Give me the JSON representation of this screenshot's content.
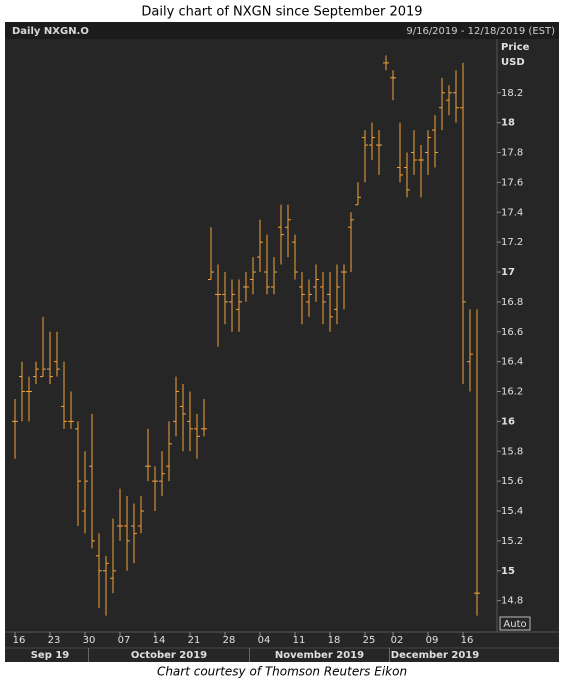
{
  "chart_data": {
    "type": "ohlc",
    "title": "Daily chart of NXGN since September 2019",
    "instrument": "Daily NXGN.O",
    "date_range": "9/16/2019 - 12/18/2019 (EST)",
    "y_axis_label": "Price",
    "y_axis_unit": "USD",
    "scale_button": "Auto",
    "footer": "Chart courtesy of Thomson Reuters Eikon",
    "color": "#f2a23a",
    "x": [
      "2019-09-16",
      "2019-09-17",
      "2019-09-18",
      "2019-09-19",
      "2019-09-20",
      "2019-09-23",
      "2019-09-24",
      "2019-09-25",
      "2019-09-26",
      "2019-09-27",
      "2019-09-30",
      "2019-10-01",
      "2019-10-02",
      "2019-10-03",
      "2019-10-04",
      "2019-10-07",
      "2019-10-08",
      "2019-10-09",
      "2019-10-10",
      "2019-10-11",
      "2019-10-14",
      "2019-10-15",
      "2019-10-16",
      "2019-10-17",
      "2019-10-18",
      "2019-10-21",
      "2019-10-22",
      "2019-10-23",
      "2019-10-24",
      "2019-10-25",
      "2019-10-28",
      "2019-10-29",
      "2019-10-30",
      "2019-10-31",
      "2019-11-01",
      "2019-11-04",
      "2019-11-05",
      "2019-11-06",
      "2019-11-07",
      "2019-11-08",
      "2019-11-11",
      "2019-11-12",
      "2019-11-13",
      "2019-11-14",
      "2019-11-15",
      "2019-11-18",
      "2019-11-19",
      "2019-11-20",
      "2019-11-21",
      "2019-11-22",
      "2019-11-25",
      "2019-11-26",
      "2019-11-27",
      "2019-11-29",
      "2019-12-02",
      "2019-12-03",
      "2019-12-04",
      "2019-12-05",
      "2019-12-06",
      "2019-12-09",
      "2019-12-10",
      "2019-12-11",
      "2019-12-12",
      "2019-12-13",
      "2019-12-16",
      "2019-12-17",
      "2019-12-18"
    ],
    "open": [
      16.0,
      16.3,
      16.2,
      16.3,
      16.3,
      16.35,
      16.4,
      16.1,
      16.0,
      15.95,
      15.4,
      15.7,
      15.1,
      15.0,
      14.95,
      15.3,
      15.3,
      15.3,
      15.3,
      15.7,
      15.6,
      15.6,
      15.7,
      16.0,
      16.1,
      16.0,
      15.95,
      15.95,
      16.95,
      16.85,
      16.85,
      16.8,
      16.75,
      16.9,
      16.95,
      17.1,
      17.0,
      16.9,
      17.3,
      17.3,
      17.2,
      16.9,
      16.8,
      16.9,
      16.9,
      16.85,
      16.75,
      17.0,
      17.3,
      17.45,
      17.9,
      17.85,
      17.85,
      18.4,
      18.3,
      17.7,
      17.7,
      17.8,
      17.75,
      17.8,
      17.95,
      18.1,
      18.15,
      18.2,
      18.1,
      16.4,
      14.85
    ],
    "high": [
      16.15,
      16.4,
      16.3,
      16.4,
      16.7,
      16.6,
      16.6,
      16.4,
      16.2,
      16.0,
      15.8,
      16.05,
      15.25,
      15.1,
      15.35,
      15.55,
      15.5,
      15.45,
      15.5,
      15.95,
      15.7,
      15.8,
      16.0,
      16.3,
      16.25,
      16.2,
      16.05,
      16.15,
      17.3,
      17.05,
      17.0,
      16.95,
      16.95,
      17.0,
      17.1,
      17.35,
      17.25,
      17.1,
      17.45,
      17.45,
      17.25,
      17.0,
      16.95,
      17.05,
      17.0,
      17.0,
      17.05,
      17.05,
      17.4,
      17.6,
      17.95,
      18.0,
      17.95,
      18.45,
      18.35,
      18.0,
      17.8,
      17.95,
      17.85,
      17.95,
      18.05,
      18.3,
      18.25,
      18.35,
      18.4,
      16.75,
      16.75
    ],
    "low": [
      15.75,
      16.0,
      16.0,
      16.25,
      16.3,
      16.25,
      16.3,
      15.95,
      15.95,
      15.3,
      15.25,
      15.15,
      14.75,
      14.7,
      14.85,
      15.2,
      15.0,
      15.05,
      15.25,
      15.6,
      15.4,
      15.5,
      15.6,
      15.9,
      15.8,
      15.8,
      15.75,
      15.9,
      16.95,
      16.5,
      16.65,
      16.6,
      16.6,
      16.8,
      16.85,
      17.0,
      16.85,
      16.85,
      17.05,
      17.1,
      16.95,
      16.65,
      16.7,
      16.8,
      16.65,
      16.6,
      16.65,
      16.75,
      17.0,
      17.45,
      17.6,
      17.75,
      17.65,
      18.35,
      18.15,
      17.6,
      17.5,
      17.65,
      17.5,
      17.65,
      17.7,
      17.95,
      18.05,
      18.0,
      16.25,
      16.2,
      14.7
    ],
    "close": [
      16.0,
      16.2,
      16.2,
      16.35,
      16.35,
      16.3,
      16.35,
      16.0,
      16.0,
      15.6,
      15.6,
      15.2,
      15.0,
      15.05,
      15.0,
      15.3,
      15.2,
      15.25,
      15.4,
      15.7,
      15.6,
      15.65,
      15.85,
      16.2,
      16.05,
      15.95,
      15.9,
      15.95,
      17.0,
      16.85,
      16.8,
      16.85,
      16.8,
      16.9,
      17.0,
      17.2,
      16.9,
      17.0,
      17.25,
      17.35,
      17.0,
      16.85,
      16.85,
      16.95,
      16.8,
      16.7,
      16.9,
      17.0,
      17.35,
      17.5,
      17.85,
      17.9,
      17.85,
      18.4,
      18.3,
      17.65,
      17.55,
      17.75,
      17.75,
      17.9,
      17.8,
      18.2,
      18.2,
      18.1,
      16.8,
      16.45,
      14.85
    ],
    "ylim": [
      14.59,
      18.56
    ],
    "yticks": [
      14.8,
      15,
      15.2,
      15.4,
      15.6,
      15.8,
      16,
      16.2,
      16.4,
      16.6,
      16.8,
      17,
      17.2,
      17.4,
      17.6,
      17.8,
      18,
      18.2
    ],
    "xticks": [
      {
        "value": "2019-09-16",
        "label": "16"
      },
      {
        "value": "2019-09-23",
        "label": "23"
      },
      {
        "value": "2019-09-30",
        "label": "30"
      },
      {
        "value": "2019-10-07",
        "label": "07"
      },
      {
        "value": "2019-10-14",
        "label": "14"
      },
      {
        "value": "2019-10-21",
        "label": "21"
      },
      {
        "value": "2019-10-28",
        "label": "28"
      },
      {
        "value": "2019-11-04",
        "label": "04"
      },
      {
        "value": "2019-11-11",
        "label": "11"
      },
      {
        "value": "2019-11-18",
        "label": "18"
      },
      {
        "value": "2019-11-25",
        "label": "25"
      },
      {
        "value": "2019-12-02",
        "label": "02"
      },
      {
        "value": "2019-12-09",
        "label": "09"
      },
      {
        "value": "2019-12-16",
        "label": "16"
      }
    ],
    "month_labels": [
      "Sep 19",
      "October 2019",
      "November 2019",
      "December 2019"
    ]
  }
}
